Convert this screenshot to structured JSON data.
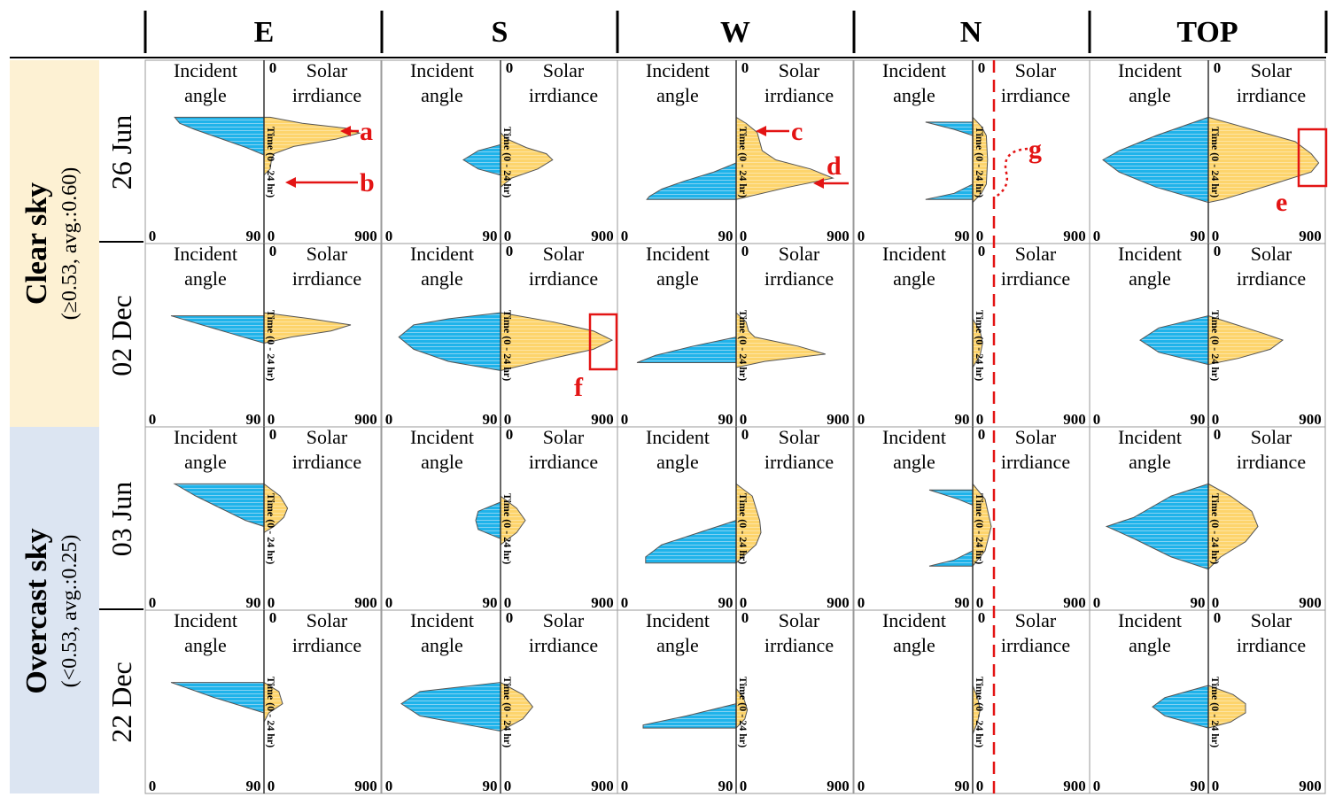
{
  "columns": [
    "E",
    "S",
    "W",
    "N",
    "TOP"
  ],
  "sky_groups": [
    {
      "title": "Clear sky",
      "subtitle": "(≥0.53, avg.:0.60)",
      "bg": "#fdf1d3"
    },
    {
      "title": "Overcast sky",
      "subtitle": "(<0.53, avg.:0.25)",
      "bg": "#dce5f2"
    }
  ],
  "rows": [
    "26 Jun",
    "02 Dec",
    "03 Jun",
    "22 Dec"
  ],
  "panel_labels": {
    "left_line1": "Incident",
    "left_line2": "angle",
    "right_line1": "Solar",
    "right_line2": "irrdiance",
    "time_axis": "Time (0 - 24 hr)",
    "zero_top": "0",
    "left_min": "0",
    "left_max": "90",
    "right_min": "0",
    "right_max": "900"
  },
  "annotations": {
    "a": "a",
    "b": "b",
    "c": "c",
    "d": "d",
    "e": "e",
    "f": "f",
    "g": "g"
  },
  "colors": {
    "incident": "#1fb3ea",
    "irradiance": "#fdd46c",
    "outline": "#555555",
    "annotation": "#e31414",
    "grid": "#9a9a9a"
  },
  "chart_data": {
    "type": "area",
    "panel_axes": {
      "time_range_hr": [
        0,
        24
      ],
      "incident_angle_range": [
        0,
        90
      ],
      "irradiance_range": [
        0,
        900
      ]
    },
    "series_order": [
      "incident_angle",
      "solar_irradiance"
    ],
    "panels": [
      {
        "row": "26 Jun",
        "col": "E",
        "incident_angle": [
          [
            5,
            72
          ],
          [
            6,
            68
          ],
          [
            7,
            56
          ],
          [
            8,
            42
          ],
          [
            9,
            28
          ],
          [
            10,
            14
          ],
          [
            11.2,
            0
          ]
        ],
        "solar_irradiance": [
          [
            5,
            50
          ],
          [
            6,
            310
          ],
          [
            6.8,
            660
          ],
          [
            7.6,
            770
          ],
          [
            8.6,
            580
          ],
          [
            9.8,
            240
          ],
          [
            11,
            80
          ],
          [
            12,
            60
          ],
          [
            13.5,
            50
          ],
          [
            14.5,
            0
          ]
        ]
      },
      {
        "row": "26 Jun",
        "col": "S",
        "incident_angle": [
          [
            9.5,
            0
          ],
          [
            10.5,
            18
          ],
          [
            12,
            30
          ],
          [
            13.5,
            18
          ],
          [
            14.5,
            0
          ]
        ],
        "solar_irradiance": [
          [
            7.5,
            0
          ],
          [
            8.5,
            45
          ],
          [
            10,
            210
          ],
          [
            11,
            370
          ],
          [
            12,
            420
          ],
          [
            13.5,
            300
          ],
          [
            15,
            90
          ],
          [
            16.5,
            0
          ]
        ]
      },
      {
        "row": "26 Jun",
        "col": "W",
        "incident_angle": [
          [
            12.5,
            0
          ],
          [
            14,
            18
          ],
          [
            15.5,
            42
          ],
          [
            16.8,
            60
          ],
          [
            18,
            70
          ],
          [
            18.5,
            72
          ]
        ],
        "solar_irradiance": [
          [
            5,
            0
          ],
          [
            6,
            80
          ],
          [
            7.5,
            170
          ],
          [
            9,
            190
          ],
          [
            10.5,
            210
          ],
          [
            12,
            320
          ],
          [
            13.5,
            600
          ],
          [
            15,
            780
          ],
          [
            16.5,
            420
          ],
          [
            18.5,
            0
          ]
        ]
      },
      {
        "row": "26 Jun",
        "col": "N",
        "incident_angle": [
          [
            5.8,
            38
          ],
          [
            7,
            15
          ],
          [
            8,
            0
          ],
          [
            16,
            0
          ],
          [
            17.5,
            15
          ],
          [
            18.5,
            38
          ]
        ],
        "solar_irradiance": [
          [
            5,
            0
          ],
          [
            6.5,
            70
          ],
          [
            8,
            110
          ],
          [
            12,
            120
          ],
          [
            16,
            110
          ],
          [
            17.5,
            70
          ],
          [
            19,
            0
          ]
        ]
      },
      {
        "row": "26 Jun",
        "col": "TOP",
        "incident_angle": [
          [
            5,
            0
          ],
          [
            8,
            42
          ],
          [
            10.5,
            72
          ],
          [
            12,
            85
          ],
          [
            14,
            72
          ],
          [
            16.5,
            42
          ],
          [
            19,
            0
          ]
        ],
        "solar_irradiance": [
          [
            5,
            0
          ],
          [
            7,
            350
          ],
          [
            9,
            700
          ],
          [
            11,
            830
          ],
          [
            12.5,
            890
          ],
          [
            14,
            830
          ],
          [
            16,
            520
          ],
          [
            18.5,
            120
          ],
          [
            19,
            0
          ]
        ]
      },
      {
        "row": "02 Dec",
        "col": "E",
        "incident_angle": [
          [
            7.5,
            75
          ],
          [
            9,
            50
          ],
          [
            10.5,
            25
          ],
          [
            12,
            0
          ]
        ],
        "solar_irradiance": [
          [
            7,
            0
          ],
          [
            8,
            380
          ],
          [
            9,
            700
          ],
          [
            10,
            540
          ],
          [
            11,
            220
          ],
          [
            12,
            0
          ]
        ]
      },
      {
        "row": "02 Dec",
        "col": "S",
        "incident_angle": [
          [
            7,
            0
          ],
          [
            8,
            42
          ],
          [
            9,
            70
          ],
          [
            11,
            82
          ],
          [
            13,
            70
          ],
          [
            15,
            42
          ],
          [
            16.5,
            0
          ]
        ],
        "solar_irradiance": [
          [
            7,
            0
          ],
          [
            8.5,
            420
          ],
          [
            10,
            750
          ],
          [
            11.5,
            900
          ],
          [
            13,
            750
          ],
          [
            14.5,
            420
          ],
          [
            16.5,
            0
          ]
        ]
      },
      {
        "row": "02 Dec",
        "col": "W",
        "incident_angle": [
          [
            11,
            0
          ],
          [
            12.5,
            35
          ],
          [
            14,
            65
          ],
          [
            15.2,
            80
          ]
        ],
        "solar_irradiance": [
          [
            7,
            0
          ],
          [
            8.5,
            80
          ],
          [
            10,
            100
          ],
          [
            11,
            150
          ],
          [
            12.5,
            500
          ],
          [
            13.8,
            720
          ],
          [
            15,
            230
          ],
          [
            16,
            0
          ]
        ]
      },
      {
        "row": "02 Dec",
        "col": "N",
        "incident_angle": [
          [
            8,
            0
          ],
          [
            16,
            0
          ]
        ],
        "solar_irradiance": [
          [
            8,
            0
          ],
          [
            10,
            60
          ],
          [
            12,
            80
          ],
          [
            14,
            60
          ],
          [
            16,
            0
          ]
        ]
      },
      {
        "row": "02 Dec",
        "col": "TOP",
        "incident_angle": [
          [
            7.5,
            0
          ],
          [
            9.5,
            40
          ],
          [
            11.5,
            55
          ],
          [
            13.5,
            40
          ],
          [
            15.5,
            0
          ]
        ],
        "solar_irradiance": [
          [
            7.5,
            0
          ],
          [
            9,
            230
          ],
          [
            10.5,
            460
          ],
          [
            11.5,
            600
          ],
          [
            13,
            500
          ],
          [
            14.5,
            240
          ],
          [
            15.5,
            0
          ]
        ]
      },
      {
        "row": "03 Jun",
        "col": "E",
        "incident_angle": [
          [
            5,
            72
          ],
          [
            7,
            55
          ],
          [
            9,
            35
          ],
          [
            11,
            15
          ],
          [
            12,
            0
          ]
        ],
        "solar_irradiance": [
          [
            5,
            0
          ],
          [
            7,
            130
          ],
          [
            9,
            190
          ],
          [
            10.5,
            160
          ],
          [
            12,
            80
          ],
          [
            13,
            0
          ]
        ]
      },
      {
        "row": "03 Jun",
        "col": "S",
        "incident_angle": [
          [
            8,
            0
          ],
          [
            9.5,
            18
          ],
          [
            11,
            20
          ],
          [
            12.5,
            18
          ],
          [
            14,
            0
          ]
        ],
        "solar_irradiance": [
          [
            7,
            0
          ],
          [
            9,
            130
          ],
          [
            11,
            200
          ],
          [
            13,
            130
          ],
          [
            15,
            0
          ]
        ]
      },
      {
        "row": "03 Jun",
        "col": "W",
        "incident_angle": [
          [
            11,
            0
          ],
          [
            13,
            30
          ],
          [
            15,
            60
          ],
          [
            17,
            73
          ],
          [
            18,
            73
          ]
        ],
        "solar_irradiance": [
          [
            5,
            0
          ],
          [
            7,
            130
          ],
          [
            9,
            160
          ],
          [
            11,
            190
          ],
          [
            13,
            200
          ],
          [
            15,
            160
          ],
          [
            18,
            0
          ]
        ]
      },
      {
        "row": "03 Jun",
        "col": "N",
        "incident_angle": [
          [
            6,
            35
          ],
          [
            7.5,
            12
          ],
          [
            8.5,
            0
          ],
          [
            16,
            0
          ],
          [
            17.5,
            15
          ],
          [
            18.5,
            35
          ]
        ],
        "solar_irradiance": [
          [
            5,
            0
          ],
          [
            7.5,
            100
          ],
          [
            12,
            150
          ],
          [
            16,
            100
          ],
          [
            18.5,
            0
          ]
        ]
      },
      {
        "row": "03 Jun",
        "col": "TOP",
        "incident_angle": [
          [
            5,
            0
          ],
          [
            7,
            30
          ],
          [
            10.5,
            60
          ],
          [
            12,
            82
          ],
          [
            14,
            60
          ],
          [
            17,
            30
          ],
          [
            19,
            0
          ]
        ],
        "solar_irradiance": [
          [
            5,
            0
          ],
          [
            7,
            180
          ],
          [
            9.5,
            350
          ],
          [
            12,
            400
          ],
          [
            14.5,
            300
          ],
          [
            17,
            100
          ],
          [
            19,
            0
          ]
        ]
      },
      {
        "row": "22 Dec",
        "col": "E",
        "incident_angle": [
          [
            7.5,
            75
          ],
          [
            10,
            40
          ],
          [
            12.5,
            0
          ]
        ],
        "solar_irradiance": [
          [
            7.5,
            0
          ],
          [
            9,
            120
          ],
          [
            11,
            150
          ],
          [
            12.5,
            40
          ],
          [
            14,
            0
          ]
        ]
      },
      {
        "row": "22 Dec",
        "col": "S",
        "incident_angle": [
          [
            7.5,
            0
          ],
          [
            9,
            65
          ],
          [
            11,
            80
          ],
          [
            13,
            65
          ],
          [
            15.5,
            0
          ]
        ],
        "solar_irradiance": [
          [
            7.5,
            0
          ],
          [
            9.5,
            180
          ],
          [
            11.5,
            260
          ],
          [
            13.5,
            180
          ],
          [
            15.5,
            0
          ]
        ]
      },
      {
        "row": "22 Dec",
        "col": "W",
        "incident_angle": [
          [
            11,
            0
          ],
          [
            13,
            40
          ],
          [
            14.5,
            75
          ],
          [
            15,
            75
          ]
        ],
        "solar_irradiance": [
          [
            8.5,
            0
          ],
          [
            10,
            60
          ],
          [
            12,
            90
          ],
          [
            13.5,
            70
          ],
          [
            15,
            0
          ]
        ]
      },
      {
        "row": "22 Dec",
        "col": "N",
        "incident_angle": [
          [
            8,
            0
          ],
          [
            16,
            0
          ]
        ],
        "solar_irradiance": [
          [
            8,
            0
          ],
          [
            10,
            40
          ],
          [
            12,
            60
          ],
          [
            14,
            40
          ],
          [
            16,
            0
          ]
        ]
      },
      {
        "row": "22 Dec",
        "col": "TOP",
        "incident_angle": [
          [
            8,
            0
          ],
          [
            10,
            35
          ],
          [
            11.5,
            45
          ],
          [
            13,
            35
          ],
          [
            15,
            0
          ]
        ],
        "solar_irradiance": [
          [
            8,
            0
          ],
          [
            9.5,
            200
          ],
          [
            11,
            300
          ],
          [
            12.5,
            300
          ],
          [
            14,
            180
          ],
          [
            15,
            0
          ]
        ]
      }
    ]
  }
}
